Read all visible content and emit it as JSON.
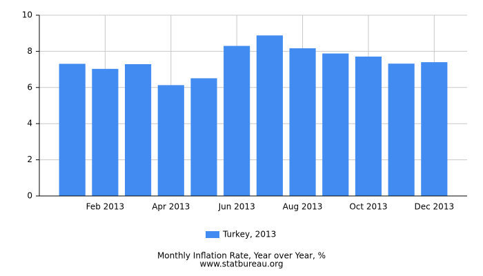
{
  "chart_data": {
    "type": "bar",
    "title": "Monthly Inflation Rate, Year over Year, %",
    "source": "www.statbureau.org",
    "categories": [
      null,
      "Feb 2013",
      null,
      "Apr 2013",
      null,
      "Jun 2013",
      null,
      "Aug 2013",
      null,
      "Oct 2013",
      null,
      "Dec 2013"
    ],
    "series": [
      {
        "name": "Turkey, 2013",
        "color": "#428bf0",
        "values": [
          7.31,
          7.03,
          7.29,
          6.13,
          6.51,
          8.3,
          8.88,
          8.17,
          7.88,
          7.71,
          7.32,
          7.4
        ]
      }
    ],
    "ylim": [
      0,
      10
    ],
    "yticks": [
      0,
      2,
      4,
      6,
      8,
      10
    ],
    "grid": true
  }
}
